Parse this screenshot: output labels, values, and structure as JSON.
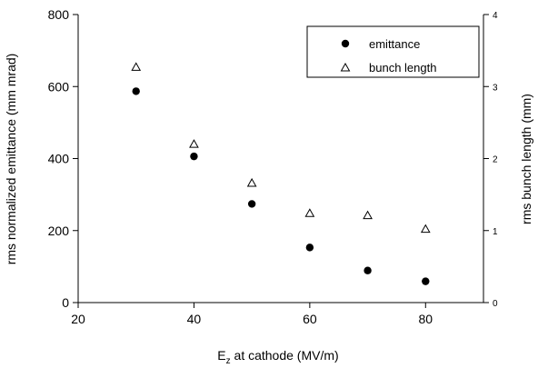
{
  "chart_data": {
    "type": "scatter",
    "title": "",
    "xlabel": "E",
    "xlabel_subscript": "z",
    "xlabel_rest": " at cathode  (MV/m)",
    "ylabel": "rms normalized emittance (mm mrad)",
    "y2label": "rms bunch length (mm)",
    "xlim": [
      20,
      90
    ],
    "ylim": [
      0,
      800
    ],
    "y2lim": [
      0,
      4
    ],
    "xticks": [
      "20",
      "40",
      "60",
      "80"
    ],
    "yticks": [
      "0",
      "200",
      "400",
      "600",
      "800"
    ],
    "y2ticks": [
      "0",
      "1",
      "2",
      "3",
      "4"
    ],
    "grid": false,
    "legend_position": "top-right",
    "series": [
      {
        "name": "emittance",
        "axis": "left",
        "marker": "filled-circle",
        "x": [
          30,
          40,
          50,
          60,
          70,
          80
        ],
        "y": [
          587,
          406,
          274,
          153,
          89,
          59
        ]
      },
      {
        "name": "bunch length",
        "axis": "right",
        "marker": "open-triangle",
        "x": [
          30,
          40,
          50,
          60,
          70,
          80
        ],
        "y": [
          3.27,
          2.2,
          1.66,
          1.24,
          1.21,
          1.02
        ]
      }
    ]
  }
}
